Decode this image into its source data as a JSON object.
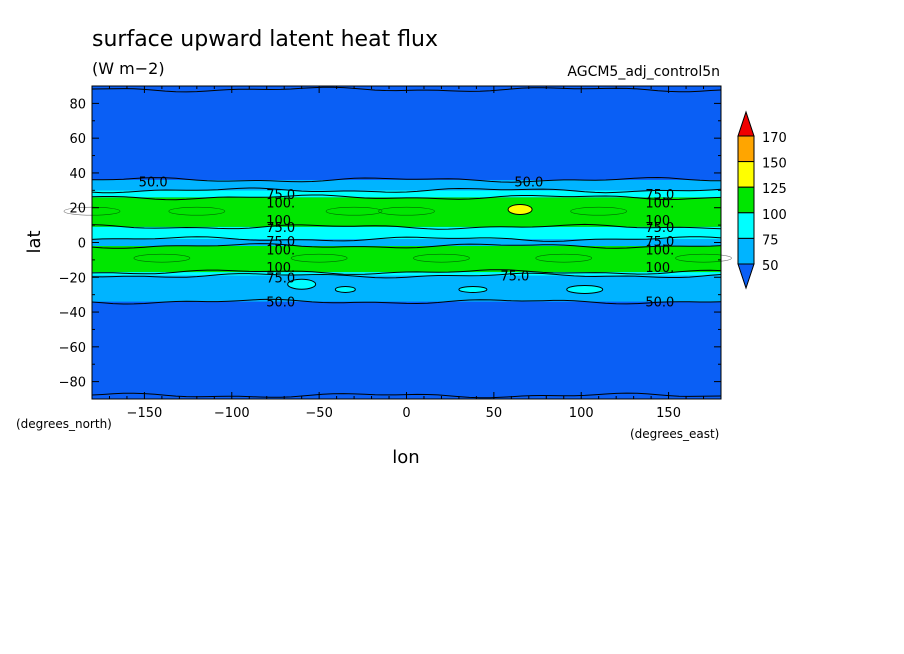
{
  "title": "surface upward latent heat flux",
  "units": "(W m−2)",
  "experiment": "AGCM5_adj_control5n",
  "chart_data": {
    "type": "heatmap",
    "xlabel": "lon",
    "ylabel": "lat",
    "x_units": "(degrees_east)",
    "y_units": "(degrees_north)",
    "xlim": [
      -180,
      180
    ],
    "ylim": [
      -90,
      90
    ],
    "x_ticks": [
      -150,
      -100,
      -50,
      0,
      50,
      100,
      150
    ],
    "y_ticks": [
      80,
      60,
      40,
      20,
      0,
      -20,
      -40,
      -60,
      -80
    ],
    "x_tick_labels": [
      "−150",
      "−100",
      "−50",
      "0",
      "50",
      "100",
      "150"
    ],
    "y_tick_labels": [
      "80",
      "60",
      "40",
      "20",
      "0",
      "−20",
      "−40",
      "−60",
      "−80"
    ],
    "colorbar": {
      "levels": [
        50,
        75,
        100,
        125,
        150,
        170
      ],
      "level_labels": [
        "50",
        "75",
        "100",
        "125",
        "150",
        "170"
      ],
      "colors": [
        "#0a5ff5",
        "#00b4ff",
        "#00ffff",
        "#00e600",
        "#ffff00",
        "#ffa500",
        "#f00000"
      ]
    },
    "bands": [
      {
        "lat_min": -88,
        "lat_max": -34,
        "level": "<50",
        "color": "#0a5ff5"
      },
      {
        "lat_min": -34,
        "lat_max": -19,
        "level": "50-75",
        "color": "#00b4ff"
      },
      {
        "lat_min": -19,
        "lat_max": -17,
        "level": "75-100",
        "color": "#00ffff"
      },
      {
        "lat_min": -17,
        "lat_max": -2,
        "level": "100-125",
        "color": "#00e600"
      },
      {
        "lat_min": -2,
        "lat_max": 2,
        "level": "50-75",
        "color": "#00b4ff"
      },
      {
        "lat_min": 2,
        "lat_max": 9,
        "level": "75-100",
        "color": "#00ffff"
      },
      {
        "lat_min": 9,
        "lat_max": 26,
        "level": "100-125",
        "color": "#00e600"
      },
      {
        "lat_min": 26,
        "lat_max": 30,
        "level": "75-100",
        "color": "#00ffff"
      },
      {
        "lat_min": 30,
        "lat_max": 36,
        "level": "50-75",
        "color": "#00b4ff"
      },
      {
        "lat_min": 36,
        "lat_max": 88,
        "level": "<50",
        "color": "#0a5ff5"
      }
    ],
    "max_region": {
      "lon": 65,
      "lat": 19,
      "level": "125-150",
      "color": "#ffff00"
    },
    "contour_labels": [
      {
        "text": "50.0",
        "lon": -145,
        "lat": 35
      },
      {
        "text": "50.0",
        "lon": 70,
        "lat": 35
      },
      {
        "text": "75.0",
        "lon": -72,
        "lat": 28
      },
      {
        "text": "100.",
        "lon": -72,
        "lat": 23
      },
      {
        "text": "75.0",
        "lon": 145,
        "lat": 28
      },
      {
        "text": "100.",
        "lon": 145,
        "lat": 23
      },
      {
        "text": "100.",
        "lon": -72,
        "lat": 13
      },
      {
        "text": "75.0",
        "lon": -72,
        "lat": 9
      },
      {
        "text": "100.",
        "lon": 145,
        "lat": 13
      },
      {
        "text": "75.0",
        "lon": 145,
        "lat": 9
      },
      {
        "text": "75.0",
        "lon": -72,
        "lat": 1
      },
      {
        "text": "100.",
        "lon": -72,
        "lat": -4
      },
      {
        "text": "75.0",
        "lon": 145,
        "lat": 1
      },
      {
        "text": "100.",
        "lon": 145,
        "lat": -4
      },
      {
        "text": "100.",
        "lon": -72,
        "lat": -14
      },
      {
        "text": "75.0",
        "lon": -72,
        "lat": -20
      },
      {
        "text": "100.",
        "lon": 145,
        "lat": -14
      },
      {
        "text": "75.0",
        "lon": 62,
        "lat": -19
      },
      {
        "text": "50.0",
        "lon": -72,
        "lat": -34
      },
      {
        "text": "50.0",
        "lon": 145,
        "lat": -34
      }
    ]
  }
}
